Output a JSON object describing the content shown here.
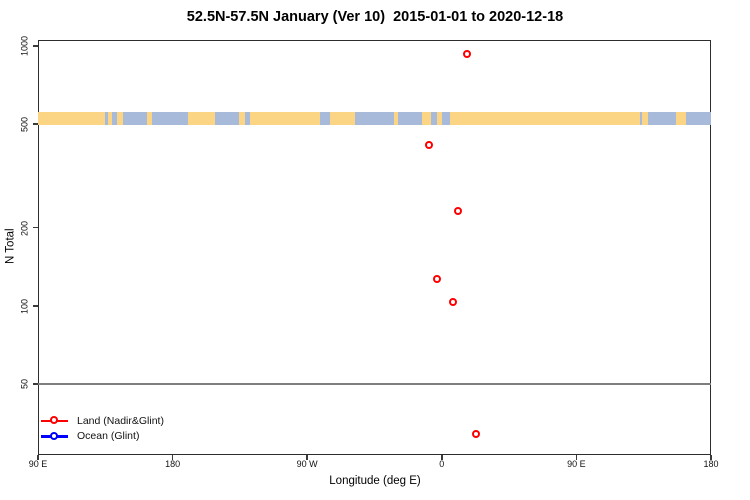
{
  "chart_data": {
    "type": "scatter",
    "title": "52.5N-57.5N January (Ver 10)  2015-01-01 to 2020-12-18",
    "xlabel": "Longitude (deg E)",
    "ylabel": "N Total",
    "x_axis": {
      "domain": [
        90,
        540
      ],
      "ticks": [
        {
          "deg": 90,
          "label": "90 E"
        },
        {
          "deg": 180,
          "label": "180"
        },
        {
          "deg": 270,
          "label": "90 W"
        },
        {
          "deg": 360,
          "label": "0"
        },
        {
          "deg": 450,
          "label": "90 E"
        },
        {
          "deg": 540,
          "label": "180"
        }
      ]
    },
    "y_axis": {
      "scale": "log",
      "domain": [
        27,
        1050
      ],
      "ticks": [
        {
          "value": 1000,
          "label": "1000"
        },
        {
          "value": 500,
          "label": "500"
        },
        {
          "value": 200,
          "label": "200"
        },
        {
          "value": 100,
          "label": "100"
        },
        {
          "value": 50,
          "label": "50"
        }
      ]
    },
    "gridline_n": 50,
    "series": [
      {
        "name": "Land (Nadir&Glint)",
        "color": "#ff0000",
        "marker": "open-circle",
        "points": [
          {
            "x_deg": 377,
            "lon_e": 17,
            "n": 930
          },
          {
            "x_deg": 352,
            "lon_e": -8,
            "n": 415
          },
          {
            "x_deg": 371,
            "lon_e": 11,
            "n": 230
          },
          {
            "x_deg": 357,
            "lon_e": -3,
            "n": 126
          },
          {
            "x_deg": 368,
            "lon_e": 8,
            "n": 103
          },
          {
            "x_deg": 383,
            "lon_e": 23,
            "n": 32
          }
        ]
      },
      {
        "name": "Ocean (Glint)",
        "color": "#0000ff",
        "marker": "open-circle",
        "points": []
      }
    ],
    "map_strip": {
      "n_range": [
        497,
        557
      ],
      "ocean_color": "#a7bad9",
      "land_color": "#fbd583",
      "land_segments_deg": [
        [
          90,
          135
        ],
        [
          136.5,
          139.5
        ],
        [
          143,
          147
        ],
        [
          163,
          166
        ],
        [
          190,
          208.5
        ],
        [
          224.5,
          228.5
        ],
        [
          231.5,
          278.5
        ],
        [
          285,
          302
        ],
        [
          328,
          331
        ],
        [
          347,
          352.5
        ],
        [
          356.5,
          360
        ],
        [
          365.5,
          492.5
        ],
        [
          494,
          498
        ],
        [
          516.5,
          523
        ]
      ]
    }
  },
  "legend": {
    "items": [
      {
        "label": "Land (Nadir&Glint)",
        "color": "#ff0000"
      },
      {
        "label": "Ocean (Glint)",
        "color": "#0000ff"
      }
    ]
  },
  "colors": {
    "background": "#ffffff",
    "axis": "#2d2d2d",
    "grid": "#7e7e7e",
    "text": "#000000"
  }
}
